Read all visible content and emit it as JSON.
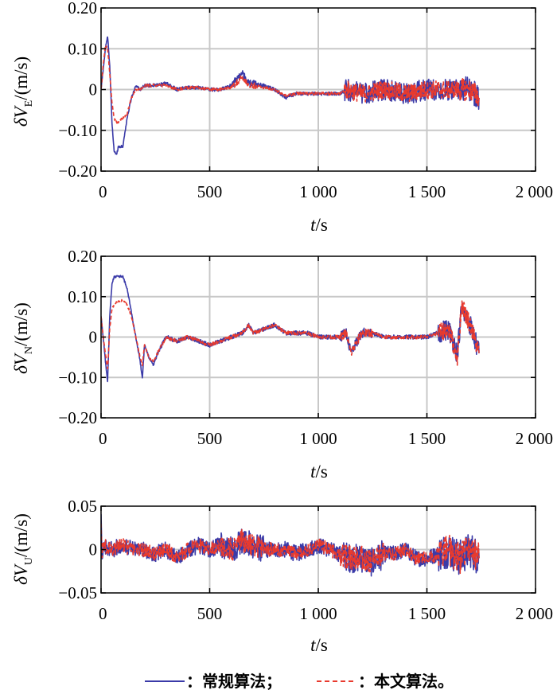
{
  "chart_data": [
    {
      "type": "line",
      "ylabel": {
        "prefix": "δ",
        "symbol": "V",
        "sub": "E",
        "unit": "/(m/s)"
      },
      "xlabel": {
        "symbol": "t",
        "unit": "/s"
      },
      "xlim": [
        0,
        2000
      ],
      "ylim": [
        -0.2,
        0.2
      ],
      "xticks": [
        0,
        500,
        1000,
        1500,
        2000
      ],
      "xtick_labels": [
        "0",
        "500",
        "1 000",
        "1 500",
        "2 000"
      ],
      "yticks": [
        0.2,
        0.1,
        0,
        -0.1,
        -0.2
      ],
      "ytick_labels": [
        "0.20",
        "0.10",
        "0",
        "−0.10",
        "−0.20"
      ],
      "grid": true,
      "series": [
        {
          "color": "#3a3aa8",
          "style": "solid",
          "x": [
            0,
            10,
            20,
            30,
            40,
            50,
            60,
            70,
            80,
            100,
            120,
            140,
            160,
            180,
            200,
            250,
            300,
            350,
            400,
            450,
            500,
            550,
            600,
            630,
            650,
            680,
            700,
            750,
            800,
            850,
            900,
            950,
            1000,
            1050,
            1100,
            1130,
            1200,
            1300,
            1400,
            1500,
            1600,
            1700,
            1740
          ],
          "y": [
            0.0,
            0.05,
            0.1,
            0.13,
            0.06,
            -0.08,
            -0.15,
            -0.16,
            -0.14,
            -0.14,
            -0.07,
            -0.02,
            0.01,
            0.0,
            0.01,
            0.01,
            0.015,
            0.0,
            0.005,
            0.005,
            0.0,
            0.0,
            0.01,
            0.03,
            0.04,
            0.015,
            0.015,
            0.01,
            0.0,
            -0.02,
            -0.01,
            -0.01,
            -0.01,
            -0.01,
            -0.01,
            0.0,
            -0.01,
            0.0,
            -0.01,
            0.0,
            0.0,
            0.0,
            -0.02
          ]
        },
        {
          "color": "#e83a2e",
          "style": "dashed",
          "x": [
            0,
            10,
            20,
            30,
            40,
            50,
            60,
            70,
            80,
            100,
            120,
            140,
            160,
            180,
            200,
            250,
            300,
            350,
            400,
            450,
            500,
            550,
            600,
            630,
            650,
            680,
            700,
            750,
            800,
            850,
            900,
            950,
            1000,
            1050,
            1100,
            1130,
            1200,
            1300,
            1400,
            1500,
            1600,
            1700,
            1740
          ],
          "y": [
            0.0,
            0.06,
            0.11,
            0.1,
            0.04,
            -0.03,
            -0.07,
            -0.08,
            -0.08,
            -0.07,
            -0.06,
            -0.02,
            0.0,
            0.0,
            0.01,
            0.01,
            0.01,
            0.0,
            0.005,
            0.005,
            0.0,
            0.0,
            0.005,
            0.02,
            0.03,
            0.01,
            0.01,
            0.005,
            0.0,
            -0.015,
            -0.01,
            -0.01,
            -0.01,
            -0.01,
            -0.01,
            0.0,
            -0.01,
            0.0,
            -0.01,
            0.0,
            0.0,
            0.0,
            -0.02
          ]
        }
      ]
    },
    {
      "type": "line",
      "ylabel": {
        "prefix": "δ",
        "symbol": "V",
        "sub": "N",
        "unit": "/(m/s)"
      },
      "xlabel": {
        "symbol": "t",
        "unit": "/s"
      },
      "xlim": [
        0,
        2000
      ],
      "ylim": [
        -0.2,
        0.2
      ],
      "xticks": [
        0,
        500,
        1000,
        1500,
        2000
      ],
      "xtick_labels": [
        "0",
        "500",
        "1 000",
        "1 500",
        "2 000"
      ],
      "yticks": [
        0.2,
        0.1,
        0,
        -0.1,
        -0.2
      ],
      "ytick_labels": [
        "0.20",
        "0.10",
        "0",
        "−0.10",
        "−0.20"
      ],
      "grid": true,
      "series": [
        {
          "color": "#3a3aa8",
          "style": "solid",
          "x": [
            0,
            10,
            20,
            30,
            40,
            50,
            60,
            80,
            100,
            120,
            140,
            160,
            180,
            190,
            200,
            220,
            240,
            260,
            300,
            350,
            400,
            450,
            500,
            550,
            600,
            650,
            680,
            700,
            750,
            800,
            850,
            900,
            950,
            1000,
            1050,
            1100,
            1130,
            1150,
            1200,
            1250,
            1300,
            1400,
            1500,
            1600,
            1640,
            1660,
            1700,
            1740
          ],
          "y": [
            0.05,
            0.0,
            -0.06,
            -0.11,
            0.05,
            0.13,
            0.15,
            0.15,
            0.15,
            0.12,
            0.06,
            0.0,
            -0.06,
            -0.1,
            -0.02,
            -0.05,
            -0.07,
            -0.04,
            0.0,
            -0.01,
            0.0,
            -0.01,
            -0.02,
            -0.01,
            0.0,
            0.01,
            0.03,
            0.01,
            0.02,
            0.03,
            0.01,
            0.01,
            0.01,
            0.0,
            0.0,
            0.0,
            0.01,
            -0.04,
            0.01,
            0.01,
            0.0,
            0.0,
            0.0,
            0.02,
            -0.04,
            0.07,
            0.03,
            -0.04
          ]
        },
        {
          "color": "#e83a2e",
          "style": "dashed",
          "x": [
            0,
            10,
            20,
            30,
            40,
            50,
            60,
            80,
            100,
            120,
            140,
            160,
            180,
            190,
            200,
            220,
            240,
            260,
            300,
            350,
            400,
            450,
            500,
            550,
            600,
            650,
            680,
            700,
            750,
            800,
            850,
            900,
            950,
            1000,
            1050,
            1100,
            1130,
            1150,
            1200,
            1250,
            1300,
            1400,
            1500,
            1600,
            1640,
            1660,
            1700,
            1740
          ],
          "y": [
            0.05,
            0.0,
            -0.04,
            -0.08,
            0.02,
            0.07,
            0.08,
            0.09,
            0.09,
            0.08,
            0.05,
            0.0,
            -0.05,
            -0.07,
            -0.02,
            -0.05,
            -0.06,
            -0.04,
            0.0,
            -0.01,
            0.0,
            -0.01,
            -0.02,
            -0.01,
            0.0,
            0.01,
            0.03,
            0.01,
            0.02,
            0.03,
            0.01,
            0.01,
            0.01,
            0.0,
            0.0,
            0.0,
            0.01,
            -0.04,
            0.01,
            0.01,
            0.0,
            0.0,
            0.0,
            0.02,
            -0.05,
            0.08,
            0.03,
            -0.04
          ]
        }
      ]
    },
    {
      "type": "line",
      "ylabel": {
        "prefix": "δ",
        "symbol": "V",
        "sub": "U",
        "unit": "/(m/s)"
      },
      "xlabel": {
        "symbol": "t",
        "unit": "/s"
      },
      "xlim": [
        0,
        2000
      ],
      "ylim": [
        -0.05,
        0.05
      ],
      "xticks": [
        0,
        500,
        1000,
        1500,
        2000
      ],
      "xtick_labels": [
        "0",
        "500",
        "1 000",
        "1 500",
        "2 000"
      ],
      "yticks": [
        0.05,
        0,
        -0.05
      ],
      "ytick_labels": [
        "0.05",
        "0",
        "−0.05"
      ],
      "grid": true,
      "series": [
        {
          "color": "#3a3aa8",
          "style": "solid",
          "x": [
            0,
            5,
            10,
            50,
            100,
            150,
            200,
            250,
            300,
            350,
            400,
            450,
            500,
            550,
            600,
            650,
            700,
            750,
            800,
            850,
            900,
            950,
            1000,
            1050,
            1100,
            1150,
            1200,
            1250,
            1300,
            1350,
            1400,
            1450,
            1500,
            1550,
            1600,
            1650,
            1700,
            1740
          ],
          "y": [
            0.04,
            -0.01,
            0.005,
            0.0,
            0.005,
            0.0,
            0.0,
            -0.005,
            0.0,
            -0.01,
            0.0,
            0.005,
            0.0,
            0.005,
            0.0,
            0.01,
            0.005,
            0.0,
            0.0,
            0.0,
            -0.005,
            0.0,
            0.005,
            0.0,
            -0.005,
            -0.01,
            -0.01,
            -0.015,
            -0.005,
            -0.005,
            0.0,
            -0.01,
            -0.01,
            -0.005,
            0.0,
            -0.01,
            0.0,
            -0.01
          ]
        },
        {
          "color": "#e83a2e",
          "style": "dashed",
          "x": [
            0,
            5,
            10,
            50,
            100,
            150,
            200,
            250,
            300,
            350,
            400,
            450,
            500,
            550,
            600,
            650,
            700,
            750,
            800,
            850,
            900,
            950,
            1000,
            1050,
            1100,
            1150,
            1200,
            1250,
            1300,
            1350,
            1400,
            1450,
            1500,
            1550,
            1600,
            1650,
            1700,
            1740
          ],
          "y": [
            0.03,
            -0.01,
            0.005,
            0.0,
            0.005,
            0.0,
            0.0,
            -0.005,
            0.0,
            -0.01,
            0.0,
            0.005,
            0.0,
            0.005,
            0.0,
            0.01,
            0.005,
            0.0,
            0.0,
            0.0,
            -0.005,
            0.0,
            0.005,
            0.0,
            -0.005,
            -0.01,
            -0.01,
            -0.015,
            -0.005,
            -0.005,
            0.0,
            -0.01,
            -0.01,
            -0.005,
            0.0,
            -0.01,
            0.0,
            -0.01
          ]
        }
      ]
    }
  ],
  "legend": {
    "items": [
      {
        "label": "：常规算法；",
        "color": "#3a3aa8",
        "style": "solid"
      },
      {
        "label": "：本文算法。",
        "color": "#e83a2e",
        "style": "dashed"
      }
    ]
  }
}
